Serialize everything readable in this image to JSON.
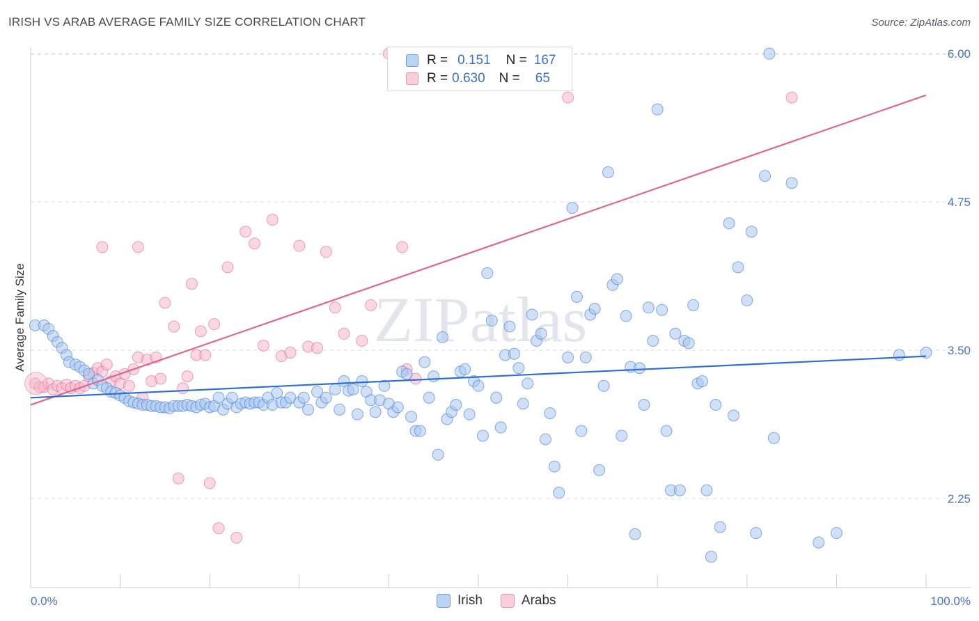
{
  "title": "IRISH VS ARAB AVERAGE FAMILY SIZE CORRELATION CHART",
  "source": "Source: ZipAtlas.com",
  "watermark": "ZIPatlas",
  "legend": {
    "irish": {
      "r_label": "R =",
      "r_value": "0.151",
      "n_label": "N =",
      "n_value": "167"
    },
    "arabs": {
      "r_label": "R =",
      "r_value": "0.630",
      "n_label": "N =",
      "n_value": "65"
    }
  },
  "bottom_legend": {
    "irish": "Irish",
    "arabs": "Arabs"
  },
  "colors": {
    "irish": "#4a7fd4",
    "irish_fill": "#aac8f0",
    "arabs": "#e06690",
    "arabs_fill": "#f5b8cc",
    "grid": "#dddddd",
    "label": "#4a72c8"
  },
  "chart_data": {
    "type": "scatter",
    "title": "IRISH VS ARAB AVERAGE FAMILY SIZE CORRELATION CHART",
    "xlabel": "",
    "ylabel": "Average Family Size",
    "xlim": [
      0,
      100
    ],
    "ylim": [
      1.5,
      6.1
    ],
    "x_tick_labels": [
      "0.0%",
      "100.0%"
    ],
    "y_ticks": [
      2.25,
      3.5,
      4.75,
      6.0
    ],
    "y_tick_labels": [
      "2.25",
      "3.50",
      "4.75",
      "6.00"
    ],
    "series": [
      {
        "name": "Irish",
        "trend": {
          "x": [
            0,
            100
          ],
          "y": [
            3.1,
            3.45
          ]
        },
        "points": [
          [
            0.5,
            3.71
          ],
          [
            1.5,
            3.71
          ],
          [
            2,
            3.68
          ],
          [
            2.5,
            3.62
          ],
          [
            3,
            3.57
          ],
          [
            3.5,
            3.52
          ],
          [
            4,
            3.46
          ],
          [
            4.3,
            3.4
          ],
          [
            5,
            3.38
          ],
          [
            5.5,
            3.36
          ],
          [
            6,
            3.33
          ],
          [
            6.5,
            3.3
          ],
          [
            7,
            3.22
          ],
          [
            7.5,
            3.25
          ],
          [
            8,
            3.2
          ],
          [
            8.5,
            3.18
          ],
          [
            9,
            3.15
          ],
          [
            9.5,
            3.14
          ],
          [
            10,
            3.12
          ],
          [
            10.5,
            3.1
          ],
          [
            11,
            3.07
          ],
          [
            11.5,
            3.06
          ],
          [
            12,
            3.05
          ],
          [
            12.5,
            3.04
          ],
          [
            13,
            3.04
          ],
          [
            13.5,
            3.03
          ],
          [
            14,
            3.03
          ],
          [
            14.5,
            3.02
          ],
          [
            15,
            3.02
          ],
          [
            15.5,
            3.01
          ],
          [
            16,
            3.03
          ],
          [
            16.5,
            3.03
          ],
          [
            17,
            3.03
          ],
          [
            17.5,
            3.04
          ],
          [
            18,
            3.03
          ],
          [
            18.5,
            3.02
          ],
          [
            19,
            3.04
          ],
          [
            19.5,
            3.05
          ],
          [
            20,
            3.02
          ],
          [
            20.5,
            3.03
          ],
          [
            21,
            3.1
          ],
          [
            21.5,
            3.0
          ],
          [
            22,
            3.05
          ],
          [
            22.5,
            3.1
          ],
          [
            23,
            3.02
          ],
          [
            23.5,
            3.05
          ],
          [
            24,
            3.06
          ],
          [
            24.5,
            3.05
          ],
          [
            25,
            3.06
          ],
          [
            25.5,
            3.06
          ],
          [
            26,
            3.04
          ],
          [
            26.5,
            3.1
          ],
          [
            27,
            3.04
          ],
          [
            27.5,
            3.14
          ],
          [
            28,
            3.06
          ],
          [
            28.5,
            3.06
          ],
          [
            29,
            3.1
          ],
          [
            30,
            3.06
          ],
          [
            30.5,
            3.1
          ],
          [
            31,
            3.0
          ],
          [
            32,
            3.15
          ],
          [
            32.5,
            3.06
          ],
          [
            33,
            3.1
          ],
          [
            34,
            3.17
          ],
          [
            34.5,
            3.0
          ],
          [
            35,
            3.24
          ],
          [
            35.5,
            3.16
          ],
          [
            36,
            3.17
          ],
          [
            36.5,
            2.96
          ],
          [
            37,
            3.24
          ],
          [
            37.5,
            3.15
          ],
          [
            38,
            3.08
          ],
          [
            38.5,
            2.98
          ],
          [
            39,
            3.08
          ],
          [
            39.5,
            3.2
          ],
          [
            40,
            3.05
          ],
          [
            40.5,
            2.98
          ],
          [
            41,
            3.02
          ],
          [
            41.5,
            3.32
          ],
          [
            42,
            3.3
          ],
          [
            42.5,
            2.94
          ],
          [
            43,
            2.82
          ],
          [
            43.5,
            2.82
          ],
          [
            44,
            3.4
          ],
          [
            44.5,
            3.1
          ],
          [
            45,
            3.28
          ],
          [
            45.5,
            2.62
          ],
          [
            46,
            3.61
          ],
          [
            46.5,
            2.92
          ],
          [
            47,
            2.98
          ],
          [
            47.5,
            3.04
          ],
          [
            48,
            3.32
          ],
          [
            48.5,
            3.34
          ],
          [
            49,
            2.96
          ],
          [
            49.5,
            3.24
          ],
          [
            50,
            3.2
          ],
          [
            50.5,
            2.78
          ],
          [
            51,
            4.15
          ],
          [
            51.5,
            3.75
          ],
          [
            52,
            3.1
          ],
          [
            52.5,
            2.85
          ],
          [
            53,
            3.46
          ],
          [
            53.5,
            3.7
          ],
          [
            54,
            3.47
          ],
          [
            54.5,
            3.35
          ],
          [
            55,
            3.05
          ],
          [
            55.5,
            3.22
          ],
          [
            56,
            3.8
          ],
          [
            56.5,
            3.58
          ],
          [
            57,
            3.64
          ],
          [
            57.5,
            2.75
          ],
          [
            58,
            2.97
          ],
          [
            58.5,
            2.52
          ],
          [
            59,
            2.3
          ],
          [
            60,
            3.44
          ],
          [
            60.5,
            4.7
          ],
          [
            61,
            3.95
          ],
          [
            61.5,
            2.82
          ],
          [
            62,
            3.44
          ],
          [
            62.5,
            3.8
          ],
          [
            63,
            3.85
          ],
          [
            63.5,
            2.49
          ],
          [
            64,
            3.2
          ],
          [
            64.5,
            5.0
          ],
          [
            65,
            4.05
          ],
          [
            65.5,
            4.1
          ],
          [
            66,
            2.78
          ],
          [
            66.5,
            3.79
          ],
          [
            67,
            3.36
          ],
          [
            67.5,
            1.95
          ],
          [
            68,
            3.35
          ],
          [
            68.5,
            3.04
          ],
          [
            69,
            3.86
          ],
          [
            69.5,
            3.58
          ],
          [
            70,
            5.53
          ],
          [
            70.5,
            3.84
          ],
          [
            71,
            2.82
          ],
          [
            71.5,
            2.32
          ],
          [
            72,
            3.64
          ],
          [
            72.5,
            2.32
          ],
          [
            73,
            3.58
          ],
          [
            73.5,
            3.56
          ],
          [
            74,
            3.88
          ],
          [
            74.5,
            3.22
          ],
          [
            75,
            3.24
          ],
          [
            75.5,
            2.32
          ],
          [
            76,
            1.76
          ],
          [
            76.5,
            3.04
          ],
          [
            77,
            2.01
          ],
          [
            78,
            4.57
          ],
          [
            78.5,
            2.95
          ],
          [
            79,
            4.2
          ],
          [
            80,
            3.92
          ],
          [
            80.5,
            4.5
          ],
          [
            81,
            1.96
          ],
          [
            82,
            4.97
          ],
          [
            82.5,
            6.0
          ],
          [
            83,
            2.76
          ],
          [
            85,
            4.91
          ],
          [
            88,
            1.88
          ],
          [
            90,
            1.96
          ],
          [
            97,
            3.46
          ],
          [
            100,
            3.48
          ]
        ]
      },
      {
        "name": "Arabs",
        "trend": {
          "x": [
            0,
            100
          ],
          "y": [
            3.04,
            5.65
          ]
        },
        "points": [
          [
            0.5,
            3.22
          ],
          [
            1,
            3.19
          ],
          [
            1.5,
            3.19
          ],
          [
            2,
            3.22
          ],
          [
            2.5,
            3.17
          ],
          [
            3,
            3.2
          ],
          [
            3.5,
            3.18
          ],
          [
            4,
            3.21
          ],
          [
            4.5,
            3.18
          ],
          [
            5,
            3.2
          ],
          [
            5.5,
            3.18
          ],
          [
            6,
            3.2
          ],
          [
            6.5,
            3.28
          ],
          [
            7,
            3.31
          ],
          [
            7.5,
            3.35
          ],
          [
            8,
            3.32
          ],
          [
            8.5,
            3.38
          ],
          [
            9,
            3.24
          ],
          [
            9.5,
            3.28
          ],
          [
            10,
            3.22
          ],
          [
            10.5,
            3.3
          ],
          [
            11,
            3.2
          ],
          [
            11.5,
            3.34
          ],
          [
            12,
            3.44
          ],
          [
            12.5,
            3.1
          ],
          [
            13,
            3.42
          ],
          [
            13.5,
            3.24
          ],
          [
            14,
            3.44
          ],
          [
            14.5,
            3.26
          ],
          [
            15,
            3.9
          ],
          [
            16,
            3.7
          ],
          [
            16.5,
            2.42
          ],
          [
            17,
            3.18
          ],
          [
            17.5,
            3.28
          ],
          [
            18,
            4.06
          ],
          [
            18.5,
            3.46
          ],
          [
            19,
            3.66
          ],
          [
            19.5,
            3.46
          ],
          [
            20,
            2.38
          ],
          [
            20.5,
            3.72
          ],
          [
            21,
            2.0
          ],
          [
            22,
            4.2
          ],
          [
            23,
            1.92
          ],
          [
            24,
            4.5
          ],
          [
            25,
            4.4
          ],
          [
            26,
            3.54
          ],
          [
            27,
            4.6
          ],
          [
            28,
            3.45
          ],
          [
            29,
            3.48
          ],
          [
            30,
            4.38
          ],
          [
            31,
            3.53
          ],
          [
            32,
            3.52
          ],
          [
            33,
            4.33
          ],
          [
            34,
            3.86
          ],
          [
            35,
            3.64
          ],
          [
            37,
            3.58
          ],
          [
            38,
            3.88
          ],
          [
            40,
            6.0
          ],
          [
            41.5,
            4.37
          ],
          [
            42,
            3.34
          ],
          [
            43,
            3.26
          ],
          [
            60,
            5.63
          ],
          [
            85,
            5.63
          ],
          [
            8,
            4.37
          ],
          [
            12,
            4.37
          ]
        ]
      }
    ]
  }
}
